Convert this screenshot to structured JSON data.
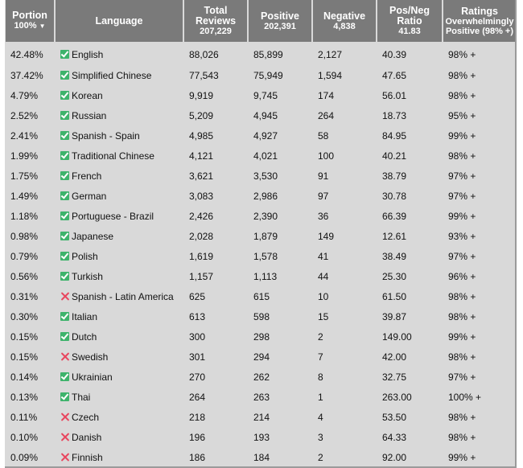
{
  "columns": {
    "portion": {
      "label": "Portion",
      "sub": "100%",
      "sort_arrow": "▼"
    },
    "language": {
      "label": "Language"
    },
    "total": {
      "label": "Total Reviews",
      "sub": "207,229"
    },
    "positive": {
      "label": "Positive",
      "sub": "202,391"
    },
    "negative": {
      "label": "Negative",
      "sub": "4,838"
    },
    "ratio": {
      "label": "Pos/Neg Ratio",
      "sub": "41.83"
    },
    "ratings": {
      "label": "Ratings",
      "sub": "Overwhelmingly Positive (98% +)"
    }
  },
  "rows": [
    {
      "portion": "42.48%",
      "language": "English",
      "supported": true,
      "total": "88,026",
      "positive": "85,899",
      "negative": "2,127",
      "ratio": "40.39",
      "rating": "98% +"
    },
    {
      "portion": "37.42%",
      "language": "Simplified Chinese",
      "supported": true,
      "total": "77,543",
      "positive": "75,949",
      "negative": "1,594",
      "ratio": "47.65",
      "rating": "98% +"
    },
    {
      "portion": "4.79%",
      "language": "Korean",
      "supported": true,
      "total": "9,919",
      "positive": "9,745",
      "negative": "174",
      "ratio": "56.01",
      "rating": "98% +"
    },
    {
      "portion": "2.52%",
      "language": "Russian",
      "supported": true,
      "total": "5,209",
      "positive": "4,945",
      "negative": "264",
      "ratio": "18.73",
      "rating": "95% +"
    },
    {
      "portion": "2.41%",
      "language": "Spanish - Spain",
      "supported": true,
      "total": "4,985",
      "positive": "4,927",
      "negative": "58",
      "ratio": "84.95",
      "rating": "99% +"
    },
    {
      "portion": "1.99%",
      "language": "Traditional Chinese",
      "supported": true,
      "total": "4,121",
      "positive": "4,021",
      "negative": "100",
      "ratio": "40.21",
      "rating": "98% +"
    },
    {
      "portion": "1.75%",
      "language": "French",
      "supported": true,
      "total": "3,621",
      "positive": "3,530",
      "negative": "91",
      "ratio": "38.79",
      "rating": "97% +"
    },
    {
      "portion": "1.49%",
      "language": "German",
      "supported": true,
      "total": "3,083",
      "positive": "2,986",
      "negative": "97",
      "ratio": "30.78",
      "rating": "97% +"
    },
    {
      "portion": "1.18%",
      "language": "Portuguese - Brazil",
      "supported": true,
      "total": "2,426",
      "positive": "2,390",
      "negative": "36",
      "ratio": "66.39",
      "rating": "99% +"
    },
    {
      "portion": "0.98%",
      "language": "Japanese",
      "supported": true,
      "total": "2,028",
      "positive": "1,879",
      "negative": "149",
      "ratio": "12.61",
      "rating": "93% +"
    },
    {
      "portion": "0.79%",
      "language": "Polish",
      "supported": true,
      "total": "1,619",
      "positive": "1,578",
      "negative": "41",
      "ratio": "38.49",
      "rating": "97% +"
    },
    {
      "portion": "0.56%",
      "language": "Turkish",
      "supported": true,
      "total": "1,157",
      "positive": "1,113",
      "negative": "44",
      "ratio": "25.30",
      "rating": "96% +"
    },
    {
      "portion": "0.31%",
      "language": "Spanish - Latin America",
      "supported": false,
      "total": "625",
      "positive": "615",
      "negative": "10",
      "ratio": "61.50",
      "rating": "98% +"
    },
    {
      "portion": "0.30%",
      "language": "Italian",
      "supported": true,
      "total": "613",
      "positive": "598",
      "negative": "15",
      "ratio": "39.87",
      "rating": "98% +"
    },
    {
      "portion": "0.15%",
      "language": "Dutch",
      "supported": true,
      "total": "300",
      "positive": "298",
      "negative": "2",
      "ratio": "149.00",
      "rating": "99% +"
    },
    {
      "portion": "0.15%",
      "language": "Swedish",
      "supported": false,
      "total": "301",
      "positive": "294",
      "negative": "7",
      "ratio": "42.00",
      "rating": "98% +"
    },
    {
      "portion": "0.14%",
      "language": "Ukrainian",
      "supported": true,
      "total": "270",
      "positive": "262",
      "negative": "8",
      "ratio": "32.75",
      "rating": "97% +"
    },
    {
      "portion": "0.13%",
      "language": "Thai",
      "supported": true,
      "total": "264",
      "positive": "263",
      "negative": "1",
      "ratio": "263.00",
      "rating": "100% +"
    },
    {
      "portion": "0.11%",
      "language": "Czech",
      "supported": false,
      "total": "218",
      "positive": "214",
      "negative": "4",
      "ratio": "53.50",
      "rating": "98% +"
    },
    {
      "portion": "0.10%",
      "language": "Danish",
      "supported": false,
      "total": "196",
      "positive": "193",
      "negative": "3",
      "ratio": "64.33",
      "rating": "98% +"
    },
    {
      "portion": "0.09%",
      "language": "Finnish",
      "supported": false,
      "total": "186",
      "positive": "184",
      "negative": "2",
      "ratio": "92.00",
      "rating": "99% +"
    }
  ],
  "colors": {
    "supported_icon": "#3db36b",
    "unsupported_icon": "#e8465e",
    "header_bg": "#7a7a7a",
    "body_bg": "#d9d9d9"
  },
  "icons": {
    "supported": "check-icon",
    "unsupported": "cross-icon"
  }
}
